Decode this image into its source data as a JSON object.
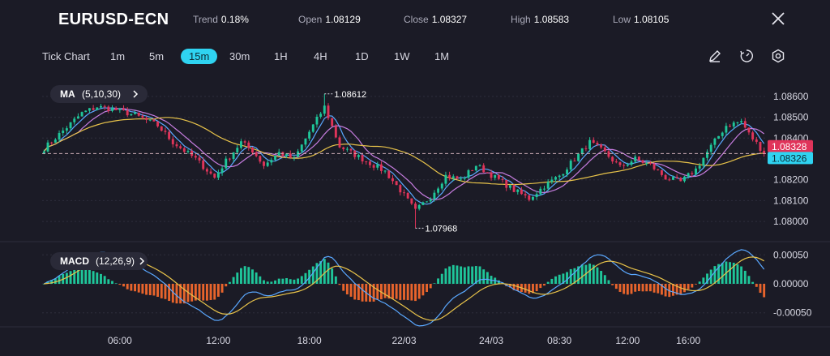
{
  "header": {
    "symbol": "EURUSD-ECN",
    "trend_label": "Trend",
    "trend_value": "0.18%",
    "open_label": "Open",
    "open_value": "1.08129",
    "close_label": "Close",
    "close_value": "1.08327",
    "high_label": "High",
    "high_value": "1.08583",
    "low_label": "Low",
    "low_value": "1.08105",
    "close_icon": "close-icon"
  },
  "timeframes": {
    "label": "Tick Chart",
    "items": [
      "1m",
      "5m",
      "15m",
      "30m",
      "1H",
      "4H",
      "1D",
      "1W",
      "1M"
    ],
    "active": "15m"
  },
  "tools": [
    "pencil-icon",
    "timer-icon",
    "settings-icon"
  ],
  "indicators": {
    "ma_label": "MA",
    "ma_params": "(5,10,30)",
    "macd_label": "MACD",
    "macd_params": "(12,26,9)"
  },
  "colors": {
    "bull": "#1fc69a",
    "bear": "#e0345a",
    "ma5": "#5aa8ff",
    "ma10": "#c77de0",
    "ma30": "#e8c34a",
    "hist_pos": "#1fc69a",
    "hist_neg": "#e8642c",
    "accent": "#2fd3f1"
  },
  "chart_data": [
    {
      "type": "candlestick",
      "name": "price",
      "x_tick_labels": [
        "06:00",
        "12:00",
        "18:00",
        "22/03",
        "24/03",
        "08:30",
        "12:00",
        "16:00"
      ],
      "y_tick_labels": [
        "1.08600",
        "1.08500",
        "1.08400",
        "1.08300",
        "1.08200",
        "1.08100",
        "1.08000"
      ],
      "y_ticks": [
        1.086,
        1.085,
        1.084,
        1.083,
        1.082,
        1.081,
        1.08
      ],
      "ylim": [
        1.0795,
        1.0865
      ],
      "annotations": [
        {
          "text": "1.08612",
          "value": 1.08612,
          "candle_index": 74
        },
        {
          "text": "1.07968",
          "value": 1.07968,
          "candle_index": 98
        }
      ],
      "price_tags": [
        {
          "text": "1.08328",
          "value": 1.08328,
          "kind": "bid"
        },
        {
          "text": "1.08326",
          "value": 1.08326,
          "kind": "ask"
        }
      ],
      "waypoints": [
        [
          0,
          1.0835
        ],
        [
          10,
          1.0852
        ],
        [
          14,
          1.0855
        ],
        [
          18,
          1.0854
        ],
        [
          24,
          1.0851
        ],
        [
          30,
          1.0846
        ],
        [
          34,
          1.0838
        ],
        [
          40,
          1.083
        ],
        [
          45,
          1.0821
        ],
        [
          48,
          1.0829
        ],
        [
          52,
          1.0838
        ],
        [
          55,
          1.0834
        ],
        [
          58,
          1.0827
        ],
        [
          62,
          1.0833
        ],
        [
          66,
          1.083
        ],
        [
          70,
          1.0843
        ],
        [
          74,
          1.0855
        ],
        [
          78,
          1.0836
        ],
        [
          82,
          1.0832
        ],
        [
          86,
          1.0828
        ],
        [
          90,
          1.0824
        ],
        [
          94,
          1.0815
        ],
        [
          98,
          1.0805
        ],
        [
          102,
          1.0812
        ],
        [
          106,
          1.0822
        ],
        [
          110,
          1.082
        ],
        [
          114,
          1.0827
        ],
        [
          120,
          1.082
        ],
        [
          124,
          1.0815
        ],
        [
          128,
          1.0811
        ],
        [
          132,
          1.0817
        ],
        [
          136,
          1.0822
        ],
        [
          140,
          1.083
        ],
        [
          144,
          1.0838
        ],
        [
          148,
          1.0833
        ],
        [
          152,
          1.0826
        ],
        [
          156,
          1.083
        ],
        [
          160,
          1.0827
        ],
        [
          164,
          1.0821
        ],
        [
          168,
          1.0819
        ],
        [
          172,
          1.0825
        ],
        [
          176,
          1.0836
        ],
        [
          180,
          1.0846
        ],
        [
          184,
          1.0848
        ],
        [
          186,
          1.0842
        ],
        [
          190,
          1.0833
        ]
      ],
      "candle_count": 191,
      "x_label_candles": [
        20,
        46,
        70,
        95,
        118,
        136,
        154,
        170
      ]
    },
    {
      "type": "macd",
      "name": "MACD",
      "y_tick_labels": [
        "0.00050",
        "0.00000",
        "-0.00050"
      ],
      "y_ticks": [
        0.0005,
        0.0,
        -0.0005
      ],
      "ylim": [
        -0.0007,
        0.0007
      ]
    }
  ]
}
